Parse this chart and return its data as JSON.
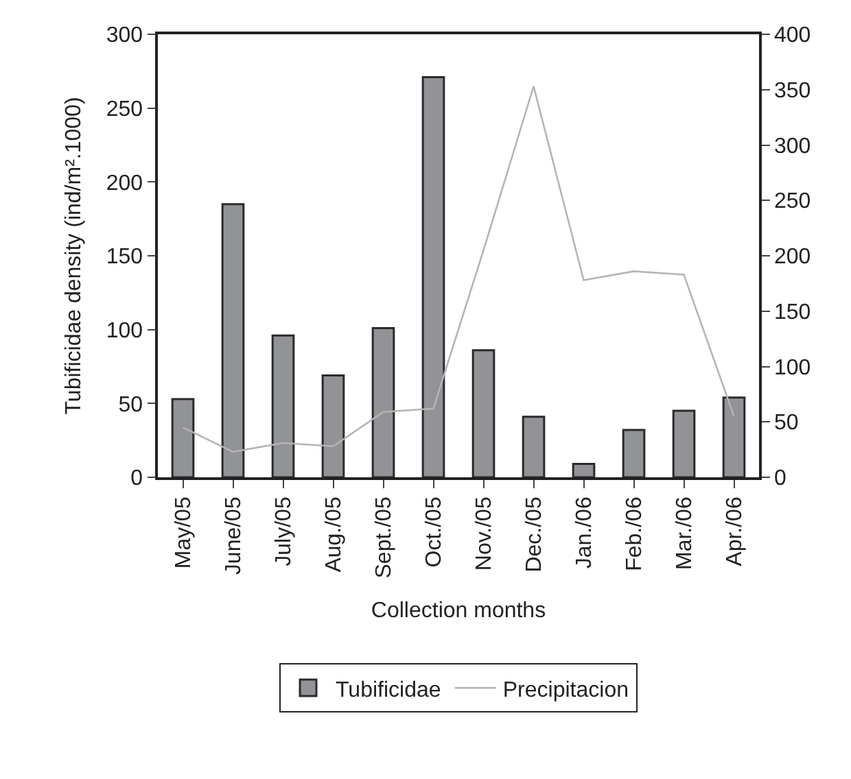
{
  "chart_data": {
    "type": "bar",
    "xlabel": "Collection months",
    "ylabel": "Tubificidae density (ind/m².1000)",
    "categories": [
      "May/05",
      "June/05",
      "July/05",
      "Aug./05",
      "Sept./05",
      "Oct./05",
      "Nov./05",
      "Dec./05",
      "Jan./06",
      "Feb./06",
      "Mar./06",
      "Apr./06"
    ],
    "series": [
      {
        "name": "Tubificidae",
        "color": "#929396",
        "values": [
          53,
          185,
          96,
          69,
          101,
          271,
          86,
          41,
          9,
          32,
          45,
          54
        ]
      },
      {
        "name": "Precipitacion",
        "type": "line",
        "axis": "y2",
        "color": "#b5b5b5",
        "values": [
          45,
          23,
          31,
          28,
          59,
          62,
          205,
          353,
          178,
          186,
          183,
          55
        ]
      }
    ],
    "ylim": [
      0,
      300
    ],
    "yticks": [
      0,
      50,
      100,
      150,
      200,
      250,
      300
    ],
    "y2lim": [
      0,
      400
    ],
    "y2ticks": [
      0,
      50,
      100,
      150,
      200,
      250,
      300,
      350,
      400
    ],
    "grid": false,
    "legend": "bottom",
    "marker": "none",
    "line_style": "solid"
  }
}
